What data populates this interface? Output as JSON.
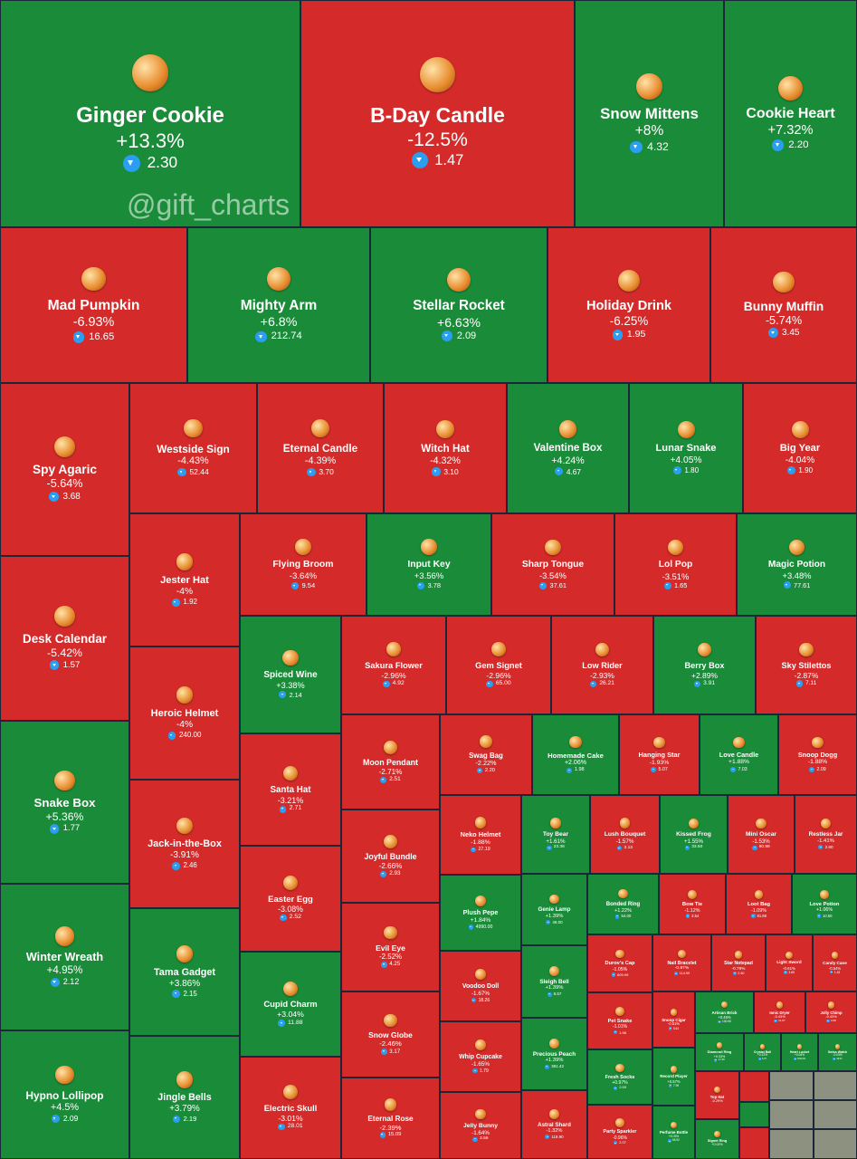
{
  "watermark": "@gift_charts",
  "tiles": [
    {
      "name": "Ginger Cookie",
      "change": "+13.3%",
      "price": "2.30",
      "color": "#1a8c39"
    },
    {
      "name": "B-Day Candle",
      "change": "-12.5%",
      "price": "1.47",
      "color": "#d42a2a"
    },
    {
      "name": "Snow Mittens",
      "change": "+8%",
      "price": "4.32",
      "color": "#1a8c39"
    },
    {
      "name": "Cookie Heart",
      "change": "+7.32%",
      "price": "2.20",
      "color": "#1a8c39"
    },
    {
      "name": "Mad Pumpkin",
      "change": "-6.93%",
      "price": "16.65",
      "color": "#d42a2a"
    },
    {
      "name": "Mighty Arm",
      "change": "+6.8%",
      "price": "212.74",
      "color": "#1a8c39"
    },
    {
      "name": "Stellar Rocket",
      "change": "+6.63%",
      "price": "2.09",
      "color": "#1a8c39"
    },
    {
      "name": "Holiday Drink",
      "change": "-6.25%",
      "price": "1.95",
      "color": "#d42a2a"
    },
    {
      "name": "Bunny Muffin",
      "change": "-5.74%",
      "price": "3.45",
      "color": "#d42a2a"
    },
    {
      "name": "Spy Agaric",
      "change": "-5.64%",
      "price": "3.68",
      "color": "#d42a2a"
    },
    {
      "name": "Desk Calendar",
      "change": "-5.42%",
      "price": "1.57",
      "color": "#d42a2a"
    },
    {
      "name": "Snake Box",
      "change": "+5.36%",
      "price": "1.77",
      "color": "#1a8c39"
    },
    {
      "name": "Winter Wreath",
      "change": "+4.95%",
      "price": "2.12",
      "color": "#1a8c39"
    },
    {
      "name": "Hypno Lollipop",
      "change": "+4.5%",
      "price": "2.09",
      "color": "#1a8c39"
    },
    {
      "name": "Westside Sign",
      "change": "-4.43%",
      "price": "52.44",
      "color": "#d42a2a"
    },
    {
      "name": "Eternal Candle",
      "change": "-4.39%",
      "price": "3.70",
      "color": "#d42a2a"
    },
    {
      "name": "Witch Hat",
      "change": "-4.32%",
      "price": "3.10",
      "color": "#d42a2a"
    },
    {
      "name": "Valentine Box",
      "change": "+4.24%",
      "price": "4.67",
      "color": "#1a8c39"
    },
    {
      "name": "Lunar Snake",
      "change": "+4.05%",
      "price": "1.80",
      "color": "#1a8c39"
    },
    {
      "name": "Big Year",
      "change": "-4.04%",
      "price": "1.90",
      "color": "#d42a2a"
    },
    {
      "name": "Jester Hat",
      "change": "-4%",
      "price": "1.92",
      "color": "#d42a2a"
    },
    {
      "name": "Heroic Helmet",
      "change": "-4%",
      "price": "240.00",
      "color": "#d42a2a"
    },
    {
      "name": "Jack-in-the-Box",
      "change": "-3.91%",
      "price": "2.46",
      "color": "#d42a2a"
    },
    {
      "name": "Tama Gadget",
      "change": "+3.86%",
      "price": "2.15",
      "color": "#1a8c39"
    },
    {
      "name": "Jingle Bells",
      "change": "+3.79%",
      "price": "2.19",
      "color": "#1a8c39"
    },
    {
      "name": "Flying Broom",
      "change": "-3.64%",
      "price": "9.54",
      "color": "#d42a2a"
    },
    {
      "name": "Input Key",
      "change": "+3.56%",
      "price": "3.78",
      "color": "#1a8c39"
    },
    {
      "name": "Sharp Tongue",
      "change": "-3.54%",
      "price": "37.61",
      "color": "#d42a2a"
    },
    {
      "name": "Lol Pop",
      "change": "-3.51%",
      "price": "1.65",
      "color": "#d42a2a"
    },
    {
      "name": "Magic Potion",
      "change": "+3.48%",
      "price": "77.61",
      "color": "#1a8c39"
    },
    {
      "name": "Spiced Wine",
      "change": "+3.38%",
      "price": "2.14",
      "color": "#1a8c39"
    },
    {
      "name": "Santa Hat",
      "change": "-3.21%",
      "price": "2.71",
      "color": "#d42a2a"
    },
    {
      "name": "Easter Egg",
      "change": "-3.08%",
      "price": "2.52",
      "color": "#d42a2a"
    },
    {
      "name": "Cupid Charm",
      "change": "+3.04%",
      "price": "11.88",
      "color": "#1a8c39"
    },
    {
      "name": "Electric Skull",
      "change": "-3.01%",
      "price": "28.01",
      "color": "#d42a2a"
    },
    {
      "name": "Sakura Flower",
      "change": "-2.96%",
      "price": "4.92",
      "color": "#d42a2a"
    },
    {
      "name": "Gem Signet",
      "change": "-2.96%",
      "price": "65.00",
      "color": "#d42a2a"
    },
    {
      "name": "Low Rider",
      "change": "-2.93%",
      "price": "26.21",
      "color": "#d42a2a"
    },
    {
      "name": "Berry Box",
      "change": "+2.89%",
      "price": "3.91",
      "color": "#1a8c39"
    },
    {
      "name": "Sky Stilettos",
      "change": "-2.87%",
      "price": "7.11",
      "color": "#d42a2a"
    },
    {
      "name": "Moon Pendant",
      "change": "-2.71%",
      "price": "2.51",
      "color": "#d42a2a"
    },
    {
      "name": "Joyful Bundle",
      "change": "-2.66%",
      "price": "2.93",
      "color": "#d42a2a"
    },
    {
      "name": "Evil Eye",
      "change": "-2.52%",
      "price": "4.25",
      "color": "#d42a2a"
    },
    {
      "name": "Snow Globe",
      "change": "-2.46%",
      "price": "3.17",
      "color": "#d42a2a"
    },
    {
      "name": "Eternal Rose",
      "change": "-2.39%",
      "price": "15.09",
      "color": "#d42a2a"
    },
    {
      "name": "Swag Bag",
      "change": "-2.22%",
      "price": "2.20",
      "color": "#d42a2a"
    },
    {
      "name": "Homemade Cake",
      "change": "+2.06%",
      "price": "1.98",
      "color": "#1a8c39"
    },
    {
      "name": "Hanging Star",
      "change": "-1.93%",
      "price": "5.07",
      "color": "#d42a2a"
    },
    {
      "name": "Love Candle",
      "change": "+1.88%",
      "price": "7.03",
      "color": "#1a8c39"
    },
    {
      "name": "Snoop Dogg",
      "change": "-1.88%",
      "price": "2.09",
      "color": "#d42a2a"
    },
    {
      "name": "Neko Helmet",
      "change": "-1.88%",
      "price": "27.19",
      "color": "#d42a2a"
    },
    {
      "name": "Plush Pepe",
      "change": "+1.84%",
      "price": "4990.00",
      "color": "#1a8c39"
    },
    {
      "name": "Voodoo Doll",
      "change": "-1.67%",
      "price": "18.26",
      "color": "#d42a2a"
    },
    {
      "name": "Whip Cupcake",
      "change": "-1.65%",
      "price": "1.79",
      "color": "#d42a2a"
    },
    {
      "name": "Jelly Bunny",
      "change": "-1.64%",
      "price": "3.59",
      "color": "#d42a2a"
    },
    {
      "name": "Toy Bear",
      "change": "+1.61%",
      "price": "23.36",
      "color": "#1a8c39"
    },
    {
      "name": "Lush Bouquet",
      "change": "-1.57%",
      "price": "3.13",
      "color": "#d42a2a"
    },
    {
      "name": "Kissed Frog",
      "change": "+1.55%",
      "price": "33.50",
      "color": "#1a8c39"
    },
    {
      "name": "Mini Oscar",
      "change": "-1.53%",
      "price": "90.98",
      "color": "#d42a2a"
    },
    {
      "name": "Restless Jar",
      "change": "-1.41%",
      "price": "2.80",
      "color": "#d42a2a"
    },
    {
      "name": "Genie Lamp",
      "change": "+1.39%",
      "price": "46.00",
      "color": "#1a8c39"
    },
    {
      "name": "Sleigh Bell",
      "change": "+1.39%",
      "price": "6.57",
      "color": "#1a8c39"
    },
    {
      "name": "Precious Peach",
      "change": "+1.39%",
      "price": "381.42",
      "color": "#1a8c39"
    },
    {
      "name": "Astral Shard",
      "change": "-1.32%",
      "price": "119.90",
      "color": "#d42a2a"
    },
    {
      "name": "Bonded Ring",
      "change": "+1.22%",
      "price": "54.00",
      "color": "#1a8c39"
    },
    {
      "name": "Bow Tie",
      "change": "-1.12%",
      "price": "3.54",
      "color": "#d42a2a"
    },
    {
      "name": "Loot Bag",
      "change": "-1.09%",
      "price": "91.88",
      "color": "#d42a2a"
    },
    {
      "name": "Love Potion",
      "change": "+1.06%",
      "price": "10.50",
      "color": "#1a8c39"
    },
    {
      "name": "Durov's Cap",
      "change": "-1.05%",
      "price": "609.99",
      "color": "#d42a2a"
    },
    {
      "name": "Pet Snake",
      "change": "-1.01%",
      "price": "1.98",
      "color": "#d42a2a"
    },
    {
      "name": "Fresh Socks",
      "change": "+0.97%",
      "price": "2.69",
      "color": "#1a8c39"
    },
    {
      "name": "Party Sparkler",
      "change": "-0.96%",
      "price": "2.07",
      "color": "#d42a2a"
    },
    {
      "name": "Nail Bracelet",
      "change": "-0.87%",
      "price": "114.99",
      "color": "#d42a2a"
    },
    {
      "name": "Star Notepad",
      "change": "-0.79%",
      "price": "2.50",
      "color": "#d42a2a"
    },
    {
      "name": "Light Sword",
      "change": "-0.61%",
      "price": "3.65",
      "color": "#d42a2a"
    },
    {
      "name": "Candy Cane",
      "change": "-0.54%",
      "price": "1.45",
      "color": "#d42a2a"
    },
    {
      "name": "Snoop Cigar",
      "change": "-0.51%",
      "price": "5.64",
      "color": "#d42a2a"
    },
    {
      "name": "Record Player",
      "change": "+0.57%",
      "price": "7.99",
      "color": "#1a8c39"
    },
    {
      "name": "Perfume Bottle",
      "change": "+0.5%",
      "price": "66.92",
      "color": "#1a8c39"
    },
    {
      "name": "Artisan Brick",
      "change": "+0.46%",
      "price": "100.90",
      "color": "#1a8c39"
    },
    {
      "name": "Ionic Dryer",
      "change": "-0.43%",
      "price": "11.67",
      "color": "#d42a2a"
    },
    {
      "name": "Jolly Chimp",
      "change": "-0.43%",
      "price": "4.08",
      "color": "#d42a2a"
    },
    {
      "name": "Diamond Ring",
      "change": "+0.33%",
      "price": "17.50",
      "color": "#1a8c39"
    },
    {
      "name": "Crystal Ball",
      "change": "+0.12%",
      "price": "6.37",
      "color": "#1a8c39"
    },
    {
      "name": "Heart Locket",
      "change": "+0.08%",
      "price": "1500.00",
      "color": "#1a8c39"
    },
    {
      "name": "Swiss Watch",
      "change": "-0.03%",
      "price": "29.01",
      "color": "#1a8c39"
    },
    {
      "name": "Top Hat",
      "change": "-0.29%",
      "color": "#d42a2a"
    },
    {
      "name": "Signet Ring",
      "change": "+0.02%",
      "color": "#1a8c39"
    }
  ]
}
